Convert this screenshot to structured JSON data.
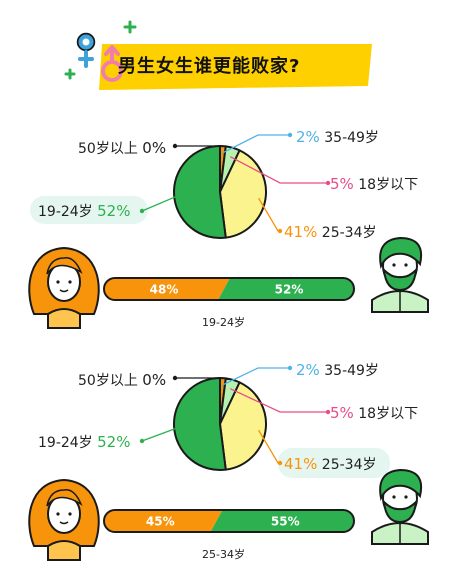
{
  "title": "男生女生谁更能败家?",
  "colors": {
    "green": "#2db150",
    "light_green": "#b6f1b0",
    "yellow": "#fbf48e",
    "orange": "#f7940b",
    "outline": "#1a1a1a",
    "blue_label": "#4fb3e8",
    "pink_label": "#e84d89",
    "banner": "#ffd000",
    "female_symbol": "#3ea3dd",
    "male_symbol": "#f17ea9"
  },
  "icons": [
    "female-symbol-icon",
    "male-symbol-icon",
    "sparkle-plus-icon",
    "woman-avatar-icon",
    "man-avatar-icon"
  ],
  "chart_data": [
    {
      "type": "pie",
      "slices": [
        {
          "label": "50岁以上",
          "pct_text": "0%",
          "value": 0
        },
        {
          "label": "35-49岁",
          "pct_text": "2%",
          "value": 2
        },
        {
          "label": "18岁以下",
          "pct_text": "5%",
          "value": 5
        },
        {
          "label": "25-34岁",
          "pct_text": "41%",
          "value": 41
        },
        {
          "label": "19-24岁",
          "pct_text": "52%",
          "value": 52
        }
      ],
      "gender_bar": {
        "female_pct": 48,
        "male_pct": 52,
        "female_text": "48%",
        "male_text": "52%",
        "caption": "19-24岁"
      }
    },
    {
      "type": "pie",
      "slices": [
        {
          "label": "50岁以上",
          "pct_text": "0%",
          "value": 0
        },
        {
          "label": "35-49岁",
          "pct_text": "2%",
          "value": 2
        },
        {
          "label": "18岁以下",
          "pct_text": "5%",
          "value": 5
        },
        {
          "label": "25-34岁",
          "pct_text": "41%",
          "value": 41
        },
        {
          "label": "19-24岁",
          "pct_text": "52%",
          "value": 52
        }
      ],
      "gender_bar": {
        "female_pct": 45,
        "male_pct": 55,
        "female_text": "45%",
        "male_text": "55%",
        "caption": "25-34岁"
      }
    }
  ]
}
